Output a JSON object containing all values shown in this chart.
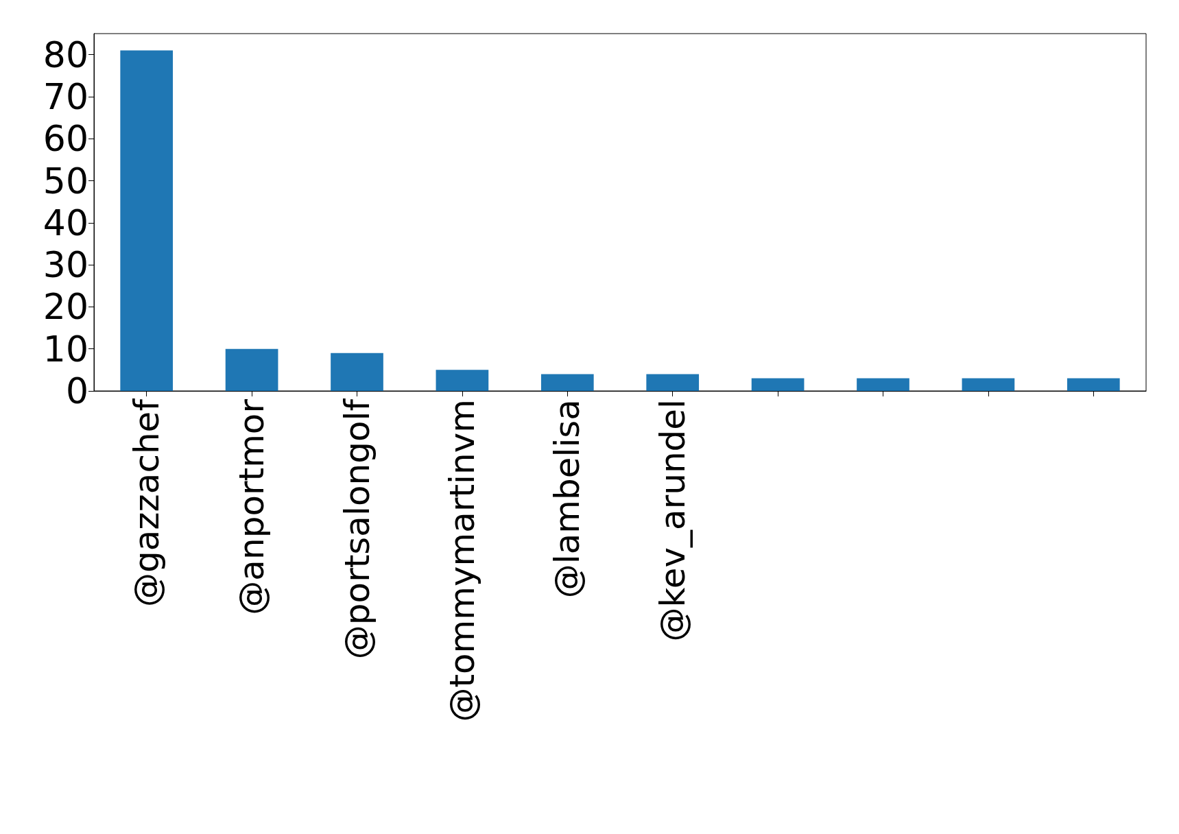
{
  "chart_data": {
    "type": "bar",
    "categories": [
      "@gazzachef",
      "@anportmor",
      "@portsalongolf",
      "@tommymartinvm",
      "@lambelisa",
      "@kev_arundel",
      null,
      null,
      null,
      null
    ],
    "values": [
      81,
      10,
      9,
      5,
      4,
      4,
      3,
      3,
      3,
      3
    ],
    "color": "#1f77b4",
    "ylim": [
      0,
      85
    ],
    "yticks": [
      0,
      10,
      20,
      30,
      40,
      50,
      60,
      70,
      80
    ],
    "grid": false
  }
}
